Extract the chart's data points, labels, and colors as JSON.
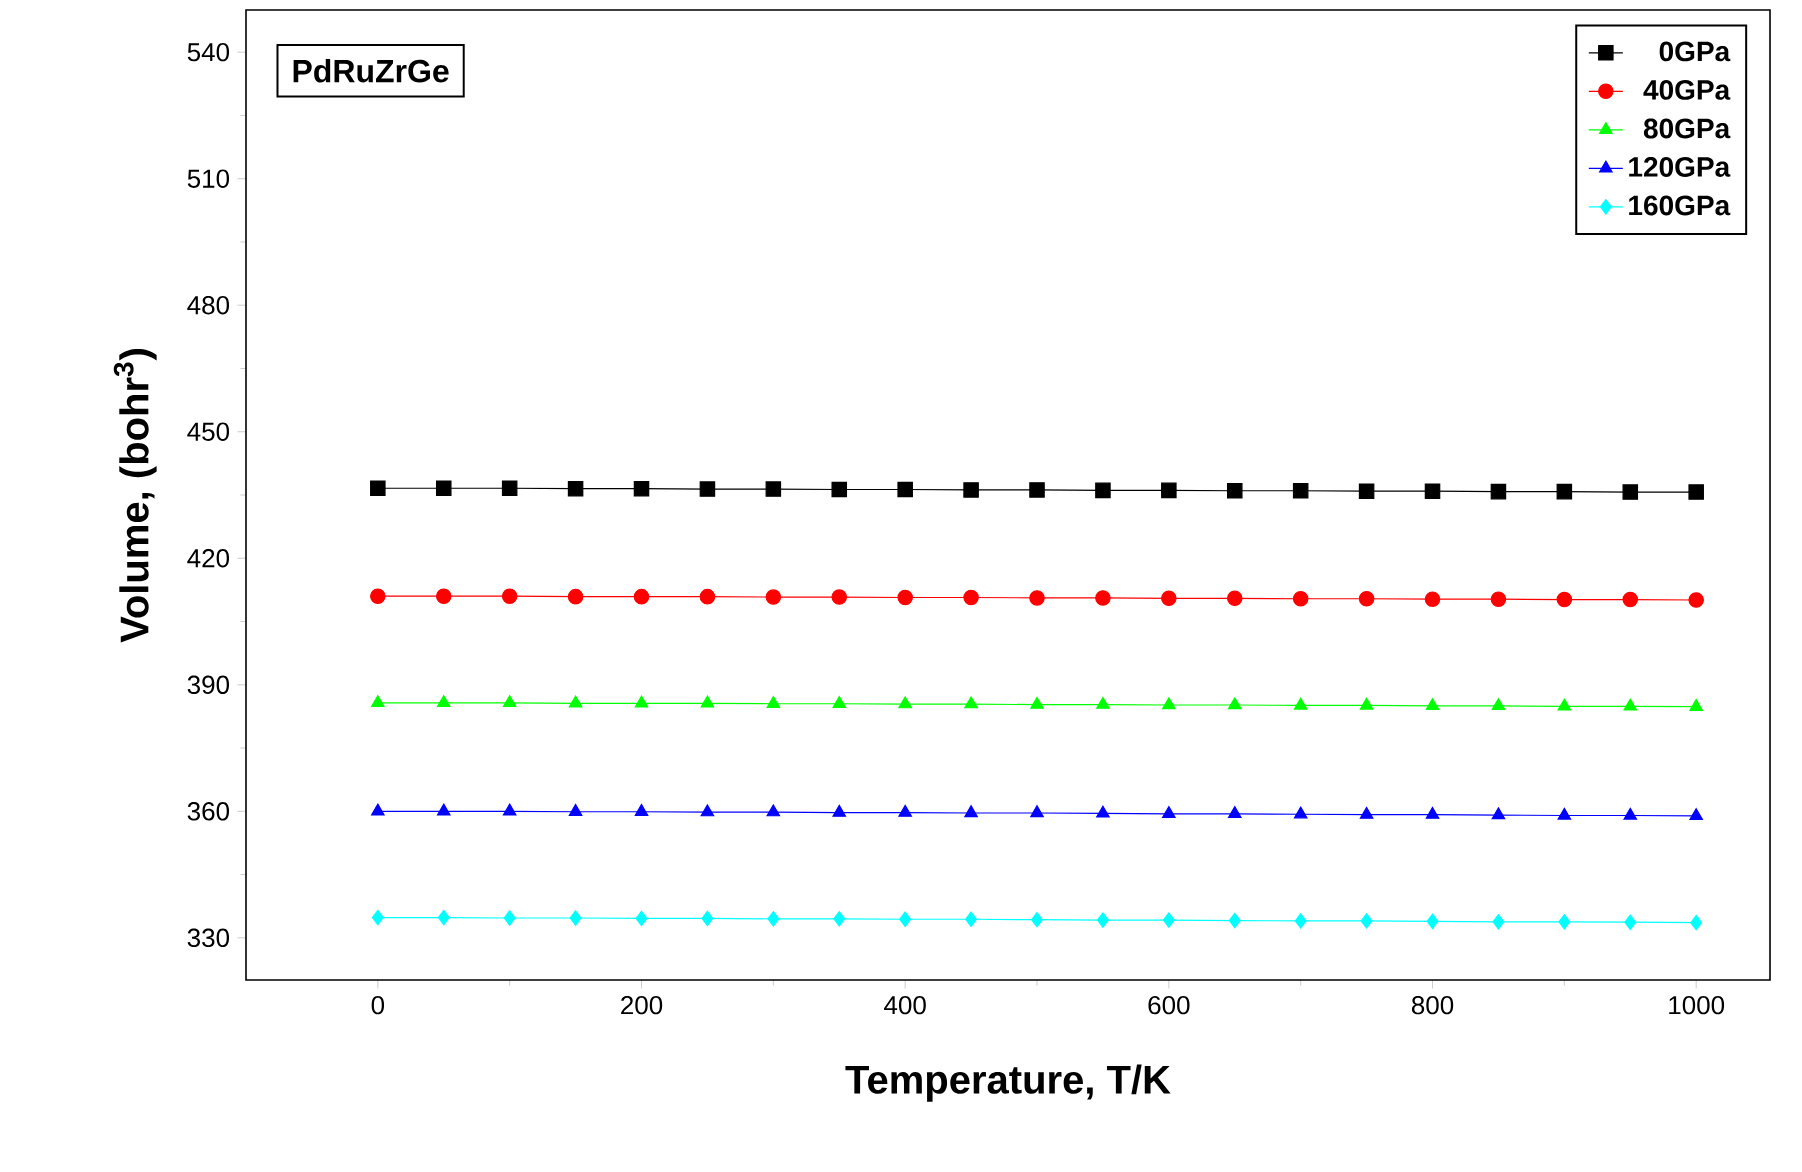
{
  "chart_data": {
    "type": "line",
    "ylabel": "Volume, (bohr$^{3}$)",
    "xlabel": "Temperature, T/K",
    "annotations": [
      "PdRuZrGe"
    ],
    "x": [
      0,
      50,
      100,
      150,
      200,
      250,
      300,
      350,
      400,
      450,
      500,
      550,
      600,
      650,
      700,
      750,
      800,
      850,
      900,
      950,
      1000
    ],
    "series": [
      {
        "name": "0GPa",
        "color": "#000000",
        "marker": "square",
        "values": [
          436.6,
          436.6,
          436.6,
          436.5,
          436.5,
          436.4,
          436.4,
          436.3,
          436.3,
          436.2,
          436.2,
          436.1,
          436.1,
          436.0,
          436.0,
          435.9,
          435.9,
          435.8,
          435.8,
          435.7,
          435.7
        ]
      },
      {
        "name": "40GPa",
        "color": "#ff0000",
        "marker": "circle",
        "values": [
          411.0,
          411.0,
          411.0,
          410.9,
          410.9,
          410.9,
          410.8,
          410.8,
          410.7,
          410.7,
          410.6,
          410.6,
          410.5,
          410.5,
          410.4,
          410.4,
          410.3,
          410.3,
          410.2,
          410.2,
          410.1
        ]
      },
      {
        "name": "80GPa",
        "color": "#00ff00",
        "marker": "triangle",
        "values": [
          385.7,
          385.7,
          385.7,
          385.6,
          385.6,
          385.6,
          385.5,
          385.5,
          385.4,
          385.4,
          385.3,
          385.3,
          385.2,
          385.2,
          385.1,
          385.1,
          385.0,
          385.0,
          384.9,
          384.9,
          384.8
        ]
      },
      {
        "name": "120GPa",
        "color": "#0000ff",
        "marker": "triangle-down",
        "values": [
          360.0,
          360.0,
          360.0,
          359.9,
          359.9,
          359.8,
          359.8,
          359.7,
          359.7,
          359.6,
          359.6,
          359.5,
          359.4,
          359.4,
          359.3,
          359.2,
          359.2,
          359.1,
          359.0,
          359.0,
          358.9
        ]
      },
      {
        "name": "160GPa",
        "color": "#00ffff",
        "marker": "diamond",
        "values": [
          334.8,
          334.8,
          334.7,
          334.7,
          334.6,
          334.6,
          334.5,
          334.5,
          334.4,
          334.4,
          334.3,
          334.2,
          334.2,
          334.1,
          334.0,
          334.0,
          333.9,
          333.8,
          333.8,
          333.7,
          333.6
        ]
      }
    ],
    "xlim": [
      -100,
      1056
    ],
    "ylim": [
      320,
      550
    ],
    "xticks": [
      0,
      200,
      400,
      600,
      800,
      1000
    ],
    "yticks": [
      330,
      360,
      390,
      420,
      450,
      480,
      510,
      540
    ],
    "legend": "top right",
    "line_style": "solid"
  }
}
